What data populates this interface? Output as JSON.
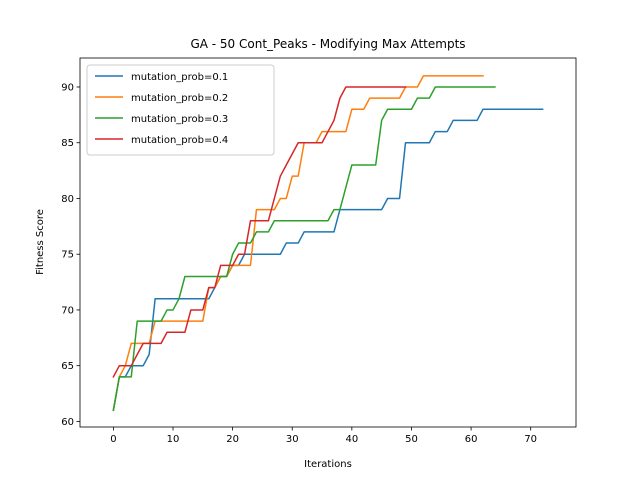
{
  "chart_data": {
    "type": "line",
    "title": "GA - 50 Cont_Peaks - Modifying Max Attempts",
    "xlabel": "Iterations",
    "ylabel": "Fitness Score",
    "xlim": [
      -5.6,
      77.6
    ],
    "ylim": [
      59.5,
      92.6
    ],
    "xticks": [
      0,
      10,
      20,
      30,
      40,
      50,
      60,
      70
    ],
    "yticks": [
      60,
      65,
      70,
      75,
      80,
      85,
      90
    ],
    "grid": false,
    "legend_position": "top-left",
    "series": [
      {
        "name": "mutation_prob=0.1",
        "color": "#1f77b4",
        "x": [
          0,
          1,
          2,
          3,
          4,
          5,
          6,
          7,
          8,
          9,
          10,
          11,
          12,
          13,
          14,
          15,
          16,
          17,
          18,
          19,
          20,
          21,
          22,
          23,
          24,
          25,
          26,
          27,
          28,
          29,
          30,
          31,
          32,
          33,
          34,
          35,
          36,
          37,
          38,
          39,
          40,
          41,
          42,
          43,
          44,
          45,
          46,
          47,
          48,
          49,
          50,
          51,
          52,
          53,
          54,
          55,
          56,
          57,
          58,
          59,
          60,
          61,
          62,
          63,
          64,
          65,
          66,
          67,
          68,
          69,
          70,
          71,
          72
        ],
        "values": [
          61,
          64,
          64,
          65,
          65,
          65,
          66,
          71,
          71,
          71,
          71,
          71,
          71,
          71,
          71,
          71,
          71,
          72,
          73,
          73,
          74,
          74,
          75,
          75,
          75,
          75,
          75,
          75,
          75,
          76,
          76,
          76,
          77,
          77,
          77,
          77,
          77,
          77,
          79,
          79,
          79,
          79,
          79,
          79,
          79,
          79,
          80,
          80,
          80,
          85,
          85,
          85,
          85,
          85,
          86,
          86,
          86,
          87,
          87,
          87,
          87,
          87,
          88,
          88,
          88,
          88,
          88,
          88,
          88,
          88,
          88,
          88,
          88
        ]
      },
      {
        "name": "mutation_prob=0.2",
        "color": "#ff7f0e",
        "x": [
          0,
          1,
          2,
          3,
          4,
          5,
          6,
          7,
          8,
          9,
          10,
          11,
          12,
          13,
          14,
          15,
          16,
          17,
          18,
          19,
          20,
          21,
          22,
          23,
          24,
          25,
          26,
          27,
          28,
          29,
          30,
          31,
          32,
          33,
          34,
          35,
          36,
          37,
          38,
          39,
          40,
          41,
          42,
          43,
          44,
          45,
          46,
          47,
          48,
          49,
          50,
          51,
          52,
          53,
          54,
          55,
          56,
          57,
          58,
          59,
          60,
          61,
          62
        ],
        "values": [
          61,
          64,
          65,
          67,
          67,
          67,
          67,
          69,
          69,
          69,
          69,
          69,
          69,
          69,
          69,
          69,
          72,
          72,
          73,
          73,
          74,
          74,
          74,
          74,
          79,
          79,
          79,
          79,
          80,
          80,
          82,
          82,
          85,
          85,
          85,
          86,
          86,
          86,
          86,
          86,
          88,
          88,
          88,
          89,
          89,
          89,
          89,
          89,
          89,
          90,
          90,
          90,
          91,
          91,
          91,
          91,
          91,
          91,
          91,
          91,
          91,
          91,
          91
        ]
      },
      {
        "name": "mutation_prob=0.3",
        "color": "#2ca02c",
        "x": [
          0,
          1,
          2,
          3,
          4,
          5,
          6,
          7,
          8,
          9,
          10,
          11,
          12,
          13,
          14,
          15,
          16,
          17,
          18,
          19,
          20,
          21,
          22,
          23,
          24,
          25,
          26,
          27,
          28,
          29,
          30,
          31,
          32,
          33,
          34,
          35,
          36,
          37,
          38,
          39,
          40,
          41,
          42,
          43,
          44,
          45,
          46,
          47,
          48,
          49,
          50,
          51,
          52,
          53,
          54,
          55,
          56,
          57,
          58,
          59,
          60,
          61,
          62,
          63,
          64
        ],
        "values": [
          61,
          64,
          64,
          64,
          69,
          69,
          69,
          69,
          69,
          70,
          70,
          71,
          73,
          73,
          73,
          73,
          73,
          73,
          73,
          73,
          75,
          76,
          76,
          76,
          77,
          77,
          77,
          78,
          78,
          78,
          78,
          78,
          78,
          78,
          78,
          78,
          78,
          79,
          79,
          81,
          83,
          83,
          83,
          83,
          83,
          87,
          88,
          88,
          88,
          88,
          88,
          89,
          89,
          89,
          90,
          90,
          90,
          90,
          90,
          90,
          90,
          90,
          90,
          90,
          90
        ]
      },
      {
        "name": "mutation_prob=0.4",
        "color": "#d62728",
        "x": [
          0,
          1,
          2,
          3,
          4,
          5,
          6,
          7,
          8,
          9,
          10,
          11,
          12,
          13,
          14,
          15,
          16,
          17,
          18,
          19,
          20,
          21,
          22,
          23,
          24,
          25,
          26,
          27,
          28,
          29,
          30,
          31,
          32,
          33,
          34,
          35,
          36,
          37,
          38,
          39,
          40,
          41,
          42,
          43,
          44,
          45,
          46,
          47,
          48,
          49
        ],
        "values": [
          64,
          65,
          65,
          65,
          66,
          67,
          67,
          67,
          67,
          68,
          68,
          68,
          68,
          70,
          70,
          70,
          72,
          72,
          74,
          74,
          74,
          75,
          75,
          78,
          78,
          78,
          78,
          80,
          82,
          83,
          84,
          85,
          85,
          85,
          85,
          85,
          86,
          87,
          89,
          90,
          90,
          90,
          90,
          90,
          90,
          90,
          90,
          90,
          90,
          90
        ]
      }
    ]
  }
}
